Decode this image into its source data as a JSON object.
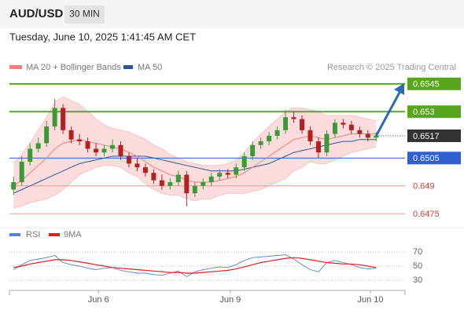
{
  "header": {
    "symbol": "AUD/USD",
    "interval": "30 MIN",
    "timestamp": "Tuesday, June 10, 2025 1:41:45 AM CET",
    "credit": "Research © 2025 Trading Central"
  },
  "chart_data": [
    {
      "type": "candlestick",
      "up_color": "#3a9a3a",
      "down_color": "#b22222",
      "xlim": [
        -0.5,
        47.5
      ],
      "ylim": [
        0.647,
        0.655
      ],
      "open": [
        0.6488,
        0.6492,
        0.6503,
        0.651,
        0.6513,
        0.6522,
        0.6532,
        0.652,
        0.6515,
        0.6514,
        0.651,
        0.6508,
        0.651,
        0.6512,
        0.6506,
        0.6502,
        0.65,
        0.6497,
        0.6493,
        0.649,
        0.6492,
        0.6496,
        0.6486,
        0.649,
        0.6492,
        0.6495,
        0.6497,
        0.6496,
        0.65,
        0.6506,
        0.6512,
        0.6514,
        0.6517,
        0.652,
        0.6527,
        0.6526,
        0.652,
        0.6514,
        0.6508,
        0.6518,
        0.6524,
        0.6523,
        0.652,
        0.6518,
        0.6516
      ],
      "high": [
        0.6495,
        0.6506,
        0.6513,
        0.6516,
        0.6525,
        0.6537,
        0.6534,
        0.6522,
        0.6518,
        0.6516,
        0.6513,
        0.6512,
        0.6515,
        0.6514,
        0.6508,
        0.6505,
        0.6502,
        0.6499,
        0.6496,
        0.6494,
        0.6498,
        0.6498,
        0.6492,
        0.6494,
        0.6497,
        0.6499,
        0.6499,
        0.6502,
        0.6508,
        0.6514,
        0.6516,
        0.6519,
        0.6522,
        0.6531,
        0.653,
        0.6528,
        0.6522,
        0.6516,
        0.652,
        0.6526,
        0.6526,
        0.6525,
        0.6522,
        0.652,
        0.6519
      ],
      "low": [
        0.6485,
        0.649,
        0.6501,
        0.6508,
        0.6511,
        0.652,
        0.6518,
        0.6513,
        0.6512,
        0.6508,
        0.6506,
        0.6506,
        0.6508,
        0.6504,
        0.65,
        0.6498,
        0.6495,
        0.6491,
        0.6488,
        0.6488,
        0.649,
        0.6479,
        0.6484,
        0.6488,
        0.649,
        0.6493,
        0.6494,
        0.6494,
        0.6498,
        0.6504,
        0.651,
        0.6512,
        0.6515,
        0.6518,
        0.6524,
        0.6518,
        0.6512,
        0.6505,
        0.6506,
        0.6516,
        0.6521,
        0.6518,
        0.6516,
        0.6514,
        0.6514
      ],
      "close": [
        0.6492,
        0.6503,
        0.651,
        0.6513,
        0.6522,
        0.6532,
        0.652,
        0.6515,
        0.6514,
        0.651,
        0.6508,
        0.651,
        0.6512,
        0.6506,
        0.6502,
        0.65,
        0.6497,
        0.6493,
        0.649,
        0.6492,
        0.6496,
        0.6486,
        0.649,
        0.6492,
        0.6495,
        0.6497,
        0.6496,
        0.65,
        0.6506,
        0.6512,
        0.6514,
        0.6517,
        0.652,
        0.6527,
        0.6526,
        0.652,
        0.6514,
        0.6508,
        0.6518,
        0.6524,
        0.6523,
        0.652,
        0.6518,
        0.6516,
        0.6517
      ],
      "ma20": {
        "name": "MA 20 + Bollinger Bands",
        "color": "#f08080",
        "values": [
          0.649,
          0.6493,
          0.6497,
          0.6501,
          0.6505,
          0.651,
          0.6513,
          0.6514,
          0.6515,
          0.6514,
          0.6513,
          0.6512,
          0.6511,
          0.651,
          0.6508,
          0.6506,
          0.6503,
          0.65,
          0.6498,
          0.6496,
          0.6495,
          0.6493,
          0.6492,
          0.6492,
          0.6492,
          0.6493,
          0.6494,
          0.6495,
          0.6497,
          0.65,
          0.6503,
          0.6506,
          0.6509,
          0.6512,
          0.6515,
          0.6516,
          0.6517,
          0.6516,
          0.6515,
          0.6516,
          0.6517,
          0.6518,
          0.6518,
          0.6518,
          0.6518
        ]
      },
      "bands": {
        "color": "#fcdcdc",
        "upper": [
          0.6502,
          0.6507,
          0.6513,
          0.652,
          0.6527,
          0.6535,
          0.6538,
          0.6536,
          0.6534,
          0.653,
          0.6526,
          0.6523,
          0.6521,
          0.652,
          0.6519,
          0.6517,
          0.6515,
          0.6512,
          0.651,
          0.6507,
          0.6505,
          0.6503,
          0.6502,
          0.6501,
          0.6501,
          0.6501,
          0.6502,
          0.6504,
          0.6508,
          0.6513,
          0.6518,
          0.6522,
          0.6526,
          0.653,
          0.6532,
          0.6532,
          0.6531,
          0.653,
          0.6528,
          0.6528,
          0.6528,
          0.6528,
          0.6527,
          0.6526,
          0.6525
        ],
        "lower": [
          0.6478,
          0.6479,
          0.6481,
          0.6482,
          0.6483,
          0.6485,
          0.6488,
          0.6492,
          0.6496,
          0.6498,
          0.65,
          0.6501,
          0.6501,
          0.65,
          0.6497,
          0.6495,
          0.6491,
          0.6488,
          0.6486,
          0.6485,
          0.6485,
          0.6483,
          0.6482,
          0.6483,
          0.6483,
          0.6485,
          0.6486,
          0.6486,
          0.6486,
          0.6487,
          0.6488,
          0.649,
          0.6492,
          0.6494,
          0.6498,
          0.65,
          0.6503,
          0.6502,
          0.6502,
          0.6504,
          0.6506,
          0.6508,
          0.6509,
          0.651,
          0.6511
        ]
      },
      "ma50": {
        "name": "MA 50",
        "color": "#2b5797",
        "values": [
          0.6486,
          0.6488,
          0.649,
          0.6492,
          0.6494,
          0.6496,
          0.6498,
          0.65,
          0.6502,
          0.6503,
          0.6504,
          0.6505,
          0.6506,
          0.6506,
          0.6506,
          0.6506,
          0.6506,
          0.6505,
          0.6504,
          0.6503,
          0.6502,
          0.6501,
          0.65,
          0.6499,
          0.6498,
          0.6498,
          0.6498,
          0.6498,
          0.6499,
          0.65,
          0.6501,
          0.6502,
          0.6504,
          0.6506,
          0.6508,
          0.6509,
          0.651,
          0.6511,
          0.6512,
          0.6513,
          0.6514,
          0.6514,
          0.6515,
          0.6515,
          0.6515
        ]
      },
      "levels": [
        {
          "value": 0.6545,
          "color": "#5aa51e",
          "boxed": true
        },
        {
          "value": 0.653,
          "color": "#5aa51e",
          "boxed": true
        },
        {
          "value": 0.6517,
          "color": "#333333",
          "boxed": true,
          "current": true
        },
        {
          "value": 0.6505,
          "color": "#2f5fd0",
          "boxed": true
        },
        {
          "value": 0.649,
          "color": "#e53935",
          "boxed": false
        },
        {
          "value": 0.6475,
          "color": "#e53935",
          "boxed": false
        }
      ]
    },
    {
      "type": "line",
      "xlim": [
        -0.5,
        47.5
      ],
      "ylim": [
        20,
        80
      ],
      "yticks": [
        70,
        50,
        30
      ],
      "xticks": [
        {
          "value": 10.3,
          "label": "Jun 6"
        },
        {
          "value": 26.3,
          "label": "Jun 9"
        },
        {
          "value": 43.3,
          "label": "Jun 10"
        }
      ],
      "series": [
        {
          "name": "RSI",
          "color": "#5b7fd6",
          "values": [
            45,
            52,
            58,
            60,
            62,
            65,
            55,
            52,
            50,
            47,
            45,
            47,
            48,
            44,
            42,
            40,
            40,
            38,
            37,
            40,
            43,
            35,
            42,
            45,
            47,
            49,
            48,
            52,
            58,
            62,
            63,
            64,
            65,
            66,
            60,
            52,
            45,
            42,
            55,
            58,
            55,
            52,
            48,
            46,
            47
          ]
        },
        {
          "name": "9MA",
          "color": "#e02020",
          "values": [
            48,
            50,
            53,
            55,
            57,
            59,
            59,
            58,
            56,
            54,
            52,
            50,
            48,
            47,
            46,
            45,
            44,
            43,
            42,
            41,
            41,
            40,
            40,
            41,
            42,
            43,
            44,
            46,
            49,
            52,
            55,
            57,
            59,
            61,
            62,
            61,
            59,
            57,
            55,
            54,
            53,
            53,
            52,
            50,
            48
          ]
        }
      ]
    }
  ]
}
